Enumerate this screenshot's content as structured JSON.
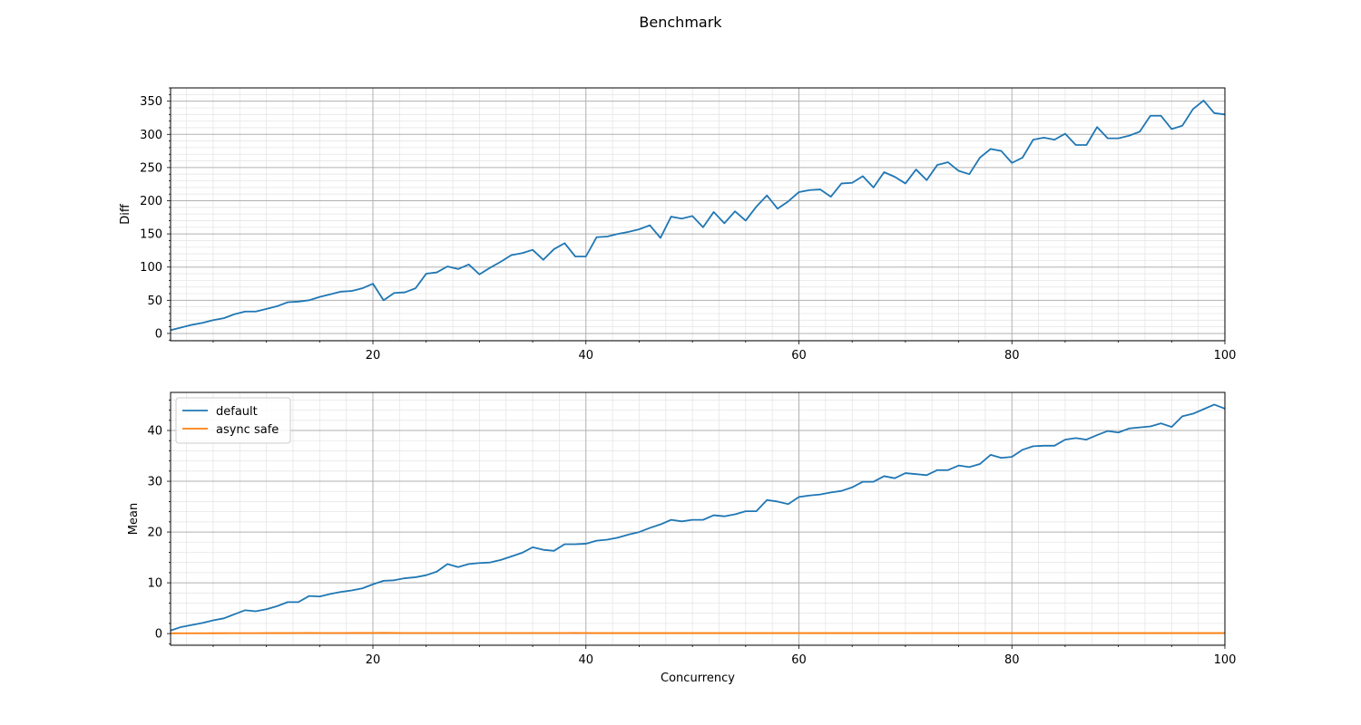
{
  "figure": {
    "title": "Benchmark"
  },
  "chart_data": [
    {
      "type": "line",
      "title": "",
      "xlabel": "",
      "ylabel": "Diff",
      "xlim": [
        1,
        100
      ],
      "ylim": [
        -11,
        370
      ],
      "xticks": [
        20,
        40,
        60,
        80,
        100
      ],
      "yticks": [
        0,
        50,
        100,
        150,
        200,
        250,
        300,
        350
      ],
      "grid": {
        "major": true,
        "minor": true
      },
      "legend": null,
      "x": [
        1,
        2,
        3,
        4,
        5,
        6,
        7,
        8,
        9,
        10,
        11,
        12,
        13,
        14,
        15,
        16,
        17,
        18,
        19,
        20,
        21,
        22,
        23,
        24,
        25,
        26,
        27,
        28,
        29,
        30,
        31,
        32,
        33,
        34,
        35,
        36,
        37,
        38,
        39,
        40,
        41,
        42,
        43,
        44,
        45,
        46,
        47,
        48,
        49,
        50,
        51,
        52,
        53,
        54,
        55,
        56,
        57,
        58,
        59,
        60,
        61,
        62,
        63,
        64,
        65,
        66,
        67,
        68,
        69,
        70,
        71,
        72,
        73,
        74,
        75,
        76,
        77,
        78,
        79,
        80,
        81,
        82,
        83,
        84,
        85,
        86,
        87,
        88,
        89,
        90,
        91,
        92,
        93,
        94,
        95,
        96,
        97,
        98,
        99,
        100
      ],
      "series": [
        {
          "name": "",
          "color": "#1f77b4",
          "values": [
            5,
            9,
            13,
            16,
            20,
            23,
            29,
            33,
            33,
            37,
            41,
            47,
            48,
            50,
            55,
            59,
            63,
            64,
            68,
            75,
            50,
            61,
            62,
            68,
            90,
            92,
            101,
            97,
            104,
            89,
            99,
            108,
            118,
            121,
            126,
            111,
            127,
            136,
            116,
            116,
            145,
            146,
            150,
            153,
            157,
            163,
            144,
            176,
            173,
            177,
            160,
            183,
            166,
            184,
            170,
            191,
            208,
            188,
            199,
            213,
            216,
            217,
            206,
            226,
            227,
            237,
            220,
            243,
            236,
            226,
            247,
            231,
            254,
            258,
            245,
            240,
            265,
            278,
            275,
            257,
            265,
            292,
            295,
            292,
            301,
            284,
            284,
            311,
            294,
            294,
            298,
            304,
            328,
            328,
            308,
            313,
            338,
            351,
            332,
            330
          ]
        }
      ]
    },
    {
      "type": "line",
      "title": "",
      "xlabel": "Concurrency",
      "ylabel": "Mean",
      "xlim": [
        1,
        100
      ],
      "ylim": [
        -2.3,
        47.5
      ],
      "xticks": [
        20,
        40,
        60,
        80,
        100
      ],
      "yticks": [
        0,
        10,
        20,
        30,
        40
      ],
      "grid": {
        "major": true,
        "minor": true
      },
      "legend": "top-left",
      "x": [
        1,
        2,
        3,
        4,
        5,
        6,
        7,
        8,
        9,
        10,
        11,
        12,
        13,
        14,
        15,
        16,
        17,
        18,
        19,
        20,
        21,
        22,
        23,
        24,
        25,
        26,
        27,
        28,
        29,
        30,
        31,
        32,
        33,
        34,
        35,
        36,
        37,
        38,
        39,
        40,
        41,
        42,
        43,
        44,
        45,
        46,
        47,
        48,
        49,
        50,
        51,
        52,
        53,
        54,
        55,
        56,
        57,
        58,
        59,
        60,
        61,
        62,
        63,
        64,
        65,
        66,
        67,
        68,
        69,
        70,
        71,
        72,
        73,
        74,
        75,
        76,
        77,
        78,
        79,
        80,
        81,
        82,
        83,
        84,
        85,
        86,
        87,
        88,
        89,
        90,
        91,
        92,
        93,
        94,
        95,
        96,
        97,
        98,
        99,
        100
      ],
      "series": [
        {
          "name": "default",
          "color": "#1f77b4",
          "values": [
            0.6,
            1.3,
            1.7,
            2.1,
            2.6,
            3.0,
            3.8,
            4.6,
            4.4,
            4.8,
            5.4,
            6.2,
            6.2,
            7.4,
            7.3,
            7.8,
            8.2,
            8.5,
            8.9,
            9.7,
            10.4,
            10.5,
            10.9,
            11.1,
            11.5,
            12.2,
            13.7,
            13.1,
            13.7,
            13.9,
            14.0,
            14.5,
            15.2,
            15.9,
            17.0,
            16.5,
            16.3,
            17.6,
            17.6,
            17.7,
            18.3,
            18.5,
            18.9,
            19.5,
            20.0,
            20.8,
            21.5,
            22.4,
            22.1,
            22.4,
            22.4,
            23.3,
            23.1,
            23.5,
            24.1,
            24.1,
            26.3,
            26.0,
            25.5,
            26.9,
            27.2,
            27.4,
            27.8,
            28.1,
            28.8,
            29.9,
            29.9,
            31.0,
            30.6,
            31.6,
            31.4,
            31.2,
            32.2,
            32.2,
            33.1,
            32.8,
            33.4,
            35.2,
            34.6,
            34.8,
            36.2,
            36.9,
            37.0,
            37.0,
            38.2,
            38.5,
            38.2,
            39.1,
            39.9,
            39.6,
            40.4,
            40.6,
            40.8,
            41.4,
            40.7,
            42.8,
            43.3,
            44.2,
            45.1,
            44.3
          ]
        },
        {
          "name": "async safe",
          "color": "#ff7f0e",
          "values": [
            0.05,
            0.06,
            0.07,
            0.07,
            0.08,
            0.08,
            0.09,
            0.09,
            0.09,
            0.1,
            0.1,
            0.1,
            0.11,
            0.12,
            0.11,
            0.11,
            0.11,
            0.12,
            0.12,
            0.12,
            0.15,
            0.12,
            0.11,
            0.11,
            0.11,
            0.11,
            0.11,
            0.11,
            0.11,
            0.11,
            0.11,
            0.11,
            0.11,
            0.11,
            0.11,
            0.11,
            0.11,
            0.11,
            0.12,
            0.11,
            0.1,
            0.1,
            0.1,
            0.1,
            0.1,
            0.1,
            0.1,
            0.1,
            0.1,
            0.1,
            0.1,
            0.1,
            0.1,
            0.1,
            0.1,
            0.1,
            0.1,
            0.1,
            0.1,
            0.1,
            0.1,
            0.1,
            0.1,
            0.1,
            0.1,
            0.1,
            0.1,
            0.1,
            0.1,
            0.1,
            0.1,
            0.1,
            0.1,
            0.1,
            0.1,
            0.1,
            0.1,
            0.1,
            0.1,
            0.1,
            0.1,
            0.1,
            0.1,
            0.1,
            0.1,
            0.1,
            0.1,
            0.1,
            0.1,
            0.1,
            0.1,
            0.1,
            0.1,
            0.1,
            0.1,
            0.1,
            0.1,
            0.1,
            0.1,
            0.1
          ]
        }
      ]
    }
  ]
}
